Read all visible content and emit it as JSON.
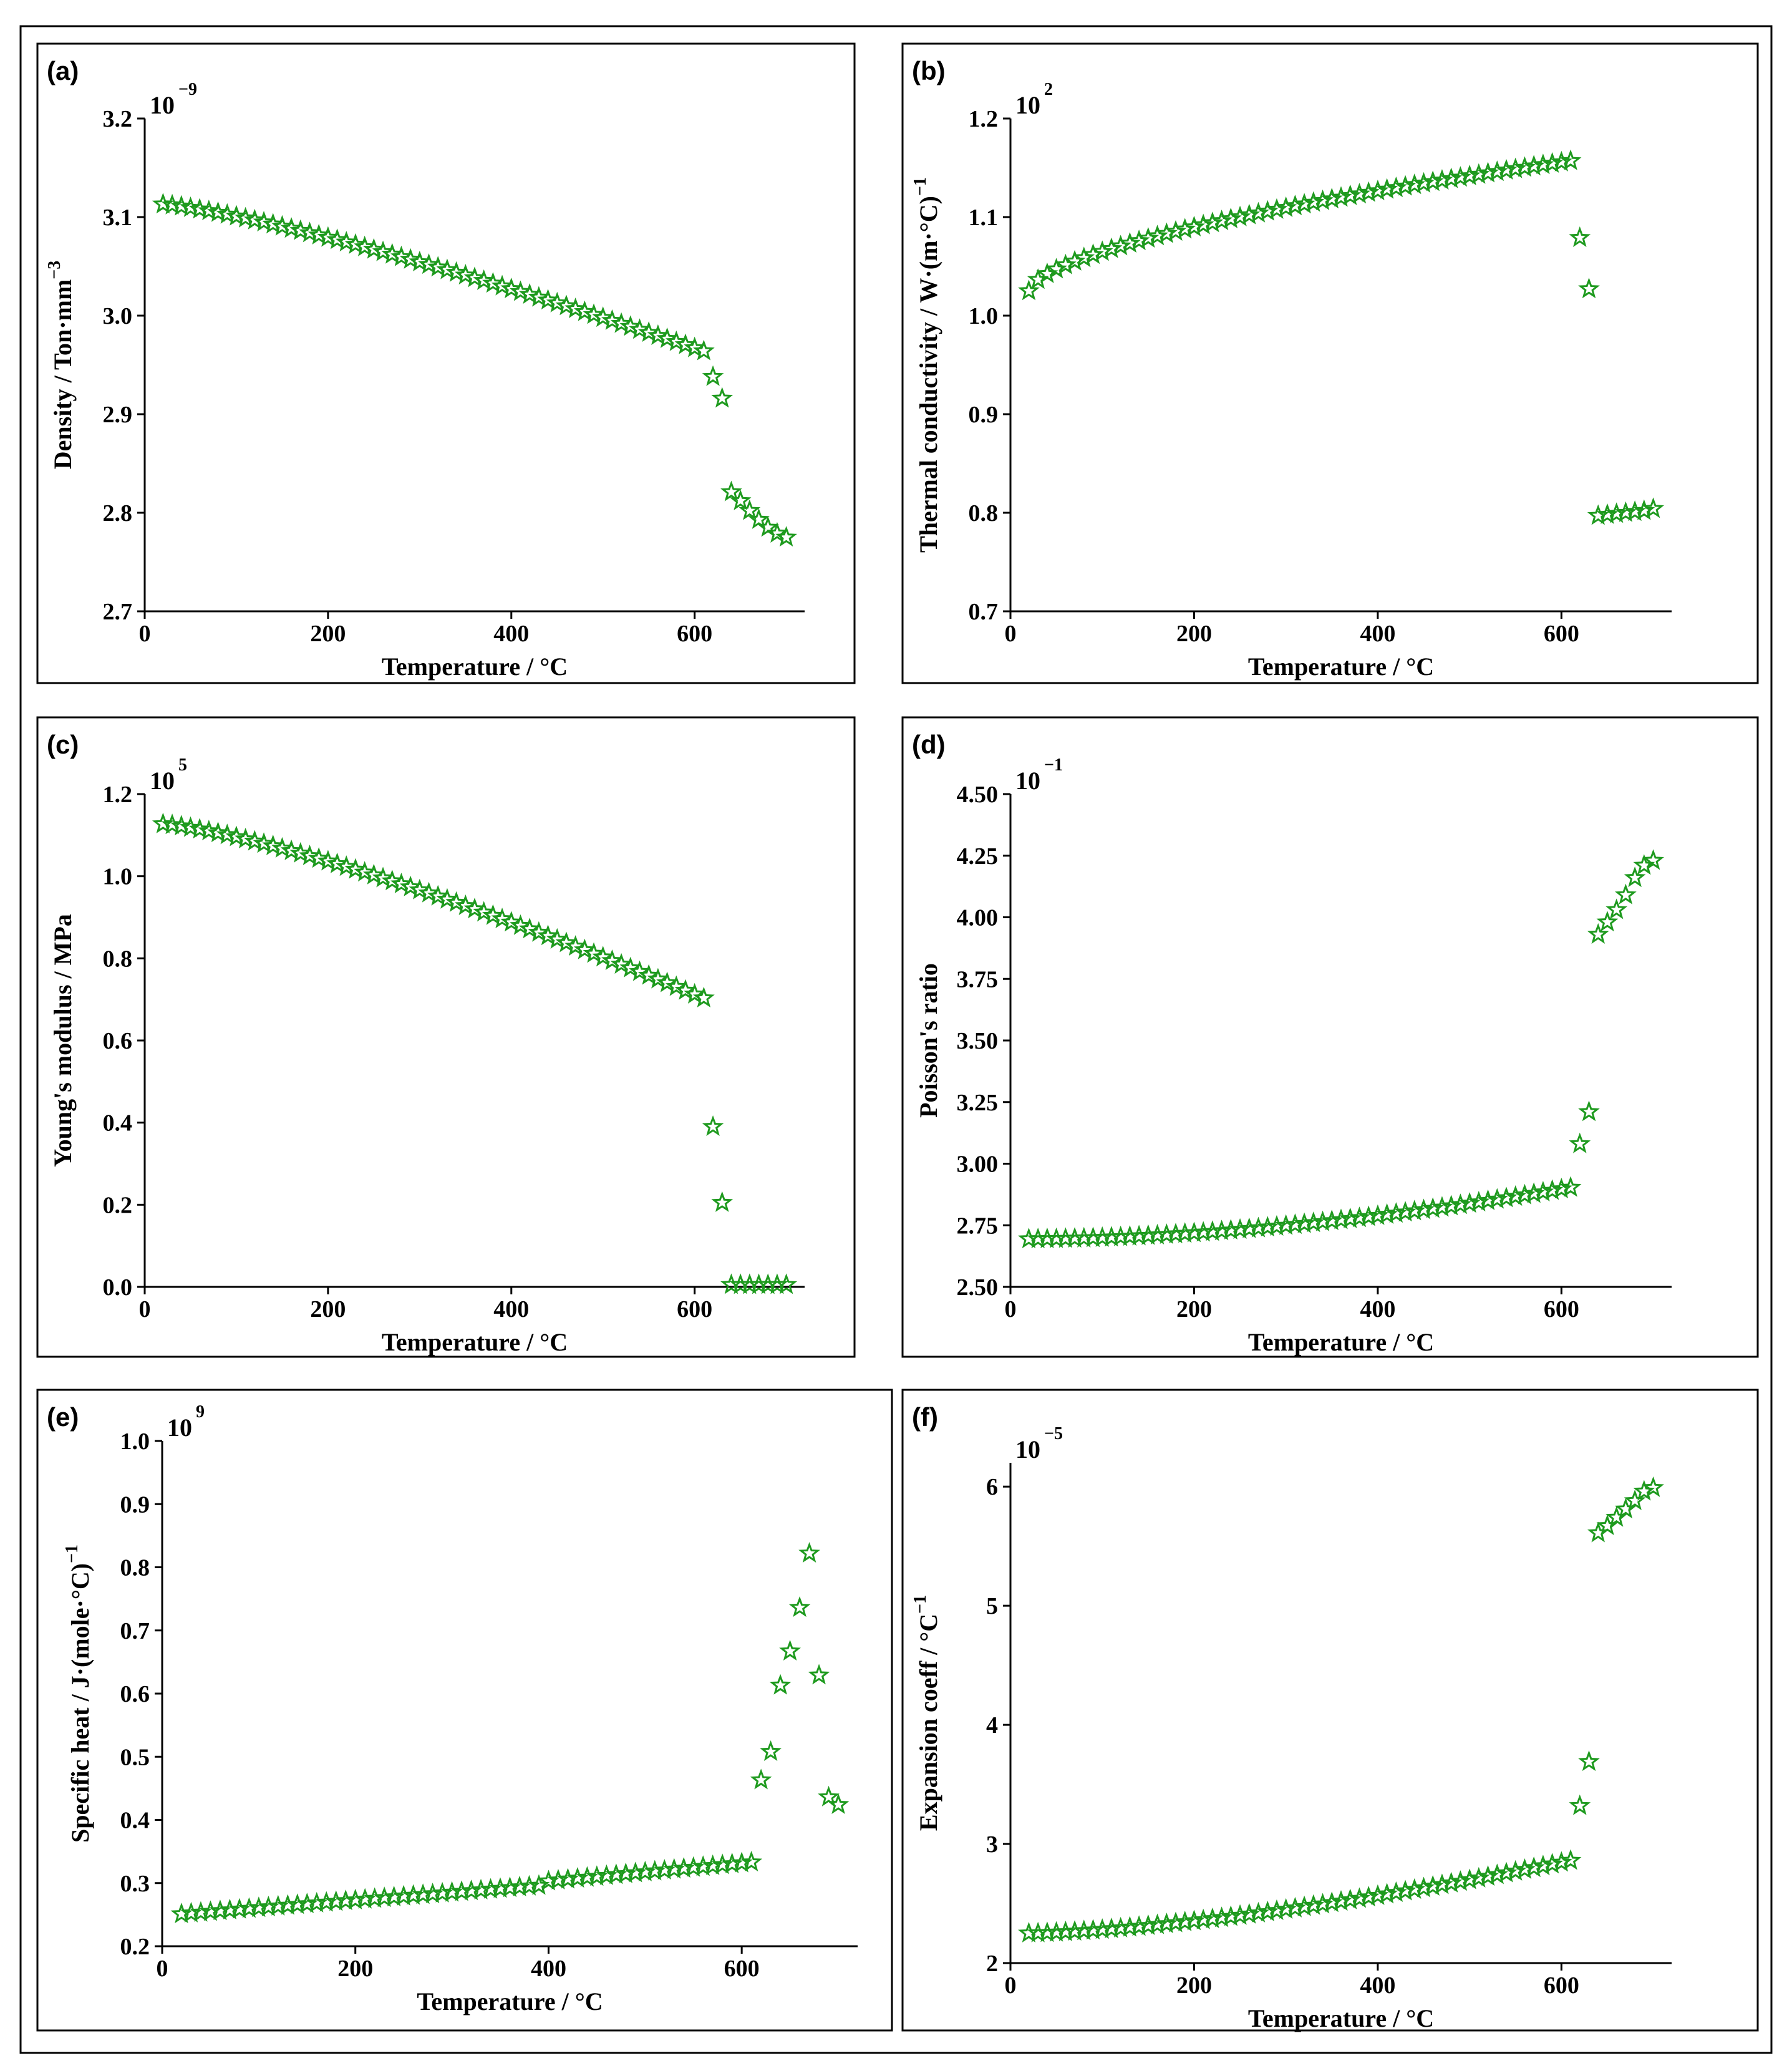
{
  "figure": {
    "name": "Temperature-dependent material properties"
  },
  "colors": {
    "marker": "#1e9a1e",
    "frame": "#000000",
    "axis": "#000000"
  },
  "chart_data": [
    {
      "id": "a",
      "panel_label": "(a)",
      "type": "scatter",
      "marker": "star",
      "ylabel": "Density / Ton·mm",
      "ylabel_sup": "−3",
      "xlabel": "Temperature / °C",
      "multiplier_base": "10",
      "multiplier_exp": "−9",
      "xlim": [
        0,
        720
      ],
      "ylim": [
        2.7,
        3.2
      ],
      "xticks": [
        0,
        200,
        400,
        600
      ],
      "xtick_labels": [
        "0",
        "200",
        "400",
        "600"
      ],
      "yticks": [
        2.7,
        2.8,
        2.9,
        3.0,
        3.1,
        3.2
      ],
      "ytick_labels": [
        "2.7",
        "2.8",
        "2.9",
        "3.0",
        "3.1",
        "3.2"
      ],
      "segments": [
        {
          "x_start": 20,
          "x_end": 610,
          "step": 10,
          "y_start": 3.113,
          "y_end": 2.964,
          "curve": 1.25
        }
      ],
      "points": [
        [
          620,
          2.938
        ],
        [
          630,
          2.916
        ],
        [
          640,
          2.821
        ],
        [
          650,
          2.812
        ],
        [
          660,
          2.802
        ],
        [
          670,
          2.793
        ],
        [
          680,
          2.785
        ],
        [
          690,
          2.779
        ],
        [
          700,
          2.775
        ]
      ]
    },
    {
      "id": "b",
      "panel_label": "(b)",
      "type": "scatter",
      "marker": "star",
      "ylabel": "Thermal conductivity / W·(m·°C)",
      "ylabel_sup": "−1",
      "xlabel": "Temperature / °C",
      "multiplier_base": "10",
      "multiplier_exp": "2",
      "xlim": [
        0,
        720
      ],
      "ylim": [
        0.7,
        1.2
      ],
      "xticks": [
        0,
        200,
        400,
        600
      ],
      "xtick_labels": [
        "0",
        "200",
        "400",
        "600"
      ],
      "yticks": [
        0.7,
        0.8,
        0.9,
        1.0,
        1.1,
        1.2
      ],
      "ytick_labels": [
        "0.7",
        "0.8",
        "0.9",
        "1.0",
        "1.1",
        "1.2"
      ],
      "segments": [
        {
          "x_start": 20,
          "x_end": 610,
          "step": 10,
          "y_start": 1.025,
          "y_end": 1.157,
          "curve": 0.6
        }
      ],
      "points": [
        [
          620,
          1.079
        ],
        [
          630,
          1.027
        ],
        [
          640,
          0.797
        ],
        [
          650,
          0.798
        ],
        [
          660,
          0.799
        ],
        [
          670,
          0.8
        ],
        [
          680,
          0.801
        ],
        [
          690,
          0.802
        ],
        [
          700,
          0.804
        ]
      ]
    },
    {
      "id": "c",
      "panel_label": "(c)",
      "type": "scatter",
      "marker": "star",
      "ylabel": "Young's modulus / MPa",
      "ylabel_sup": "",
      "xlabel": "Temperature / °C",
      "multiplier_base": "10",
      "multiplier_exp": "5",
      "xlim": [
        0,
        720
      ],
      "ylim": [
        0.0,
        1.2
      ],
      "xticks": [
        0,
        200,
        400,
        600
      ],
      "xtick_labels": [
        "0",
        "200",
        "400",
        "600"
      ],
      "yticks": [
        0.0,
        0.2,
        0.4,
        0.6,
        0.8,
        1.0,
        1.2
      ],
      "ytick_labels": [
        "0.0",
        "0.2",
        "0.4",
        "0.6",
        "0.8",
        "1.0",
        "1.2"
      ],
      "segments": [
        {
          "x_start": 20,
          "x_end": 610,
          "step": 10,
          "y_start": 1.127,
          "y_end": 0.703,
          "curve": 1.3
        }
      ],
      "points": [
        [
          620,
          0.39
        ],
        [
          630,
          0.205
        ],
        [
          640,
          0.005
        ],
        [
          650,
          0.005
        ],
        [
          660,
          0.005
        ],
        [
          670,
          0.005
        ],
        [
          680,
          0.005
        ],
        [
          690,
          0.005
        ],
        [
          700,
          0.005
        ]
      ]
    },
    {
      "id": "d",
      "panel_label": "(d)",
      "type": "scatter",
      "marker": "star",
      "ylabel": "Poisson's ratio",
      "ylabel_sup": "",
      "xlabel": "Temperature / °C",
      "multiplier_base": "10",
      "multiplier_exp": "−1",
      "xlim": [
        0,
        720
      ],
      "ylim": [
        2.5,
        4.5
      ],
      "xticks": [
        0,
        200,
        400,
        600
      ],
      "xtick_labels": [
        "0",
        "200",
        "400",
        "600"
      ],
      "yticks": [
        2.5,
        2.75,
        3.0,
        3.25,
        3.5,
        3.75,
        4.0,
        4.25,
        4.5
      ],
      "ytick_labels": [
        "2.50",
        "2.75",
        "3.00",
        "3.25",
        "3.50",
        "3.75",
        "4.00",
        "4.25",
        "4.50"
      ],
      "segments": [
        {
          "x_start": 20,
          "x_end": 610,
          "step": 10,
          "y_start": 2.694,
          "y_end": 2.903,
          "curve": 1.8
        }
      ],
      "points": [
        [
          620,
          3.08
        ],
        [
          630,
          3.21
        ],
        [
          640,
          3.93
        ],
        [
          650,
          3.98
        ],
        [
          660,
          4.03
        ],
        [
          670,
          4.09
        ],
        [
          680,
          4.16
        ],
        [
          690,
          4.21
        ],
        [
          700,
          4.23
        ]
      ]
    },
    {
      "id": "e",
      "panel_label": "(e)",
      "type": "scatter",
      "marker": "star",
      "ylabel": "Specific heat / J·(mole·°C)",
      "ylabel_sup": "−1",
      "xlabel": "Temperature / °C",
      "multiplier_base": "10",
      "multiplier_exp": "9",
      "xlim": [
        0,
        720
      ],
      "ylim": [
        0.2,
        1.0
      ],
      "xticks": [
        0,
        200,
        400,
        600
      ],
      "xtick_labels": [
        "0",
        "200",
        "400",
        "600"
      ],
      "yticks": [
        0.2,
        0.3,
        0.4,
        0.5,
        0.6,
        0.7,
        0.8,
        0.9,
        1.0
      ],
      "ytick_labels": [
        "0.2",
        "0.3",
        "0.4",
        "0.5",
        "0.6",
        "0.7",
        "0.8",
        "0.9",
        "1.0"
      ],
      "segments": [
        {
          "x_start": 20,
          "x_end": 390,
          "step": 10,
          "y_start": 0.251,
          "y_end": 0.296,
          "curve": 1.0
        },
        {
          "x_start": 400,
          "x_end": 610,
          "step": 10,
          "y_start": 0.303,
          "y_end": 0.333,
          "curve": 1.0
        }
      ],
      "points": [
        [
          620,
          0.463
        ],
        [
          630,
          0.508
        ],
        [
          640,
          0.613
        ],
        [
          650,
          0.667
        ],
        [
          660,
          0.736
        ],
        [
          670,
          0.822
        ],
        [
          680,
          0.629
        ],
        [
          690,
          0.436
        ],
        [
          700,
          0.424
        ]
      ]
    },
    {
      "id": "f",
      "panel_label": "(f)",
      "type": "scatter",
      "marker": "star",
      "ylabel": "Expansion coeff / °C",
      "ylabel_sup": "−1",
      "xlabel": "Temperature / °C",
      "multiplier_base": "10",
      "multiplier_exp": "−5",
      "xlim": [
        0,
        720
      ],
      "ylim": [
        2.0,
        6.2
      ],
      "xticks": [
        0,
        200,
        400,
        600
      ],
      "xtick_labels": [
        "0",
        "200",
        "400",
        "600"
      ],
      "yticks": [
        2,
        3,
        4,
        5,
        6
      ],
      "ytick_labels": [
        "2",
        "3",
        "4",
        "5",
        "6"
      ],
      "segments": [
        {
          "x_start": 20,
          "x_end": 610,
          "step": 10,
          "y_start": 2.25,
          "y_end": 2.86,
          "curve": 1.5
        }
      ],
      "points": [
        [
          620,
          3.32
        ],
        [
          630,
          3.69
        ],
        [
          640,
          5.61
        ],
        [
          650,
          5.67
        ],
        [
          660,
          5.74
        ],
        [
          670,
          5.81
        ],
        [
          680,
          5.88
        ],
        [
          690,
          5.96
        ],
        [
          700,
          5.99
        ]
      ]
    }
  ]
}
